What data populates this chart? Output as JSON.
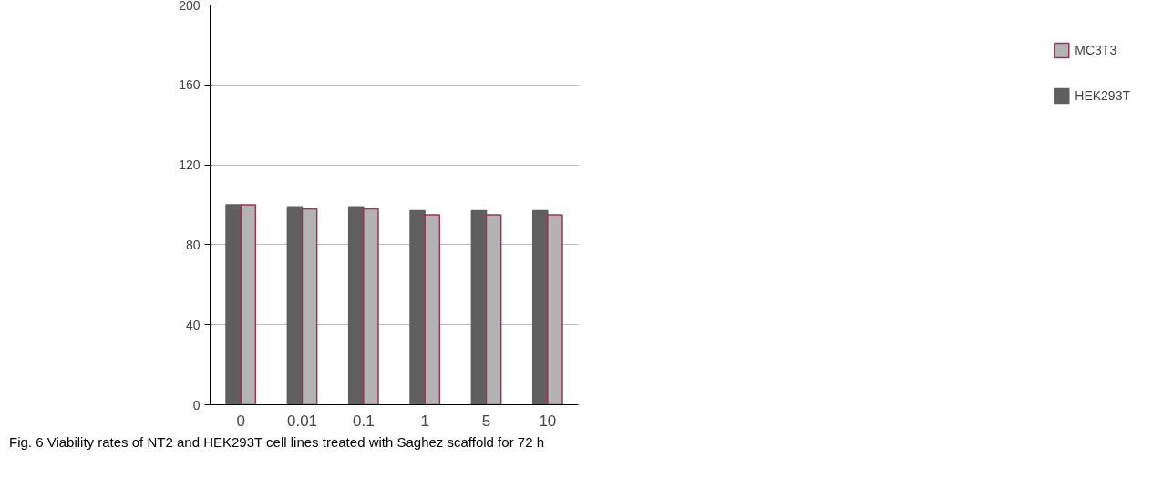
{
  "chart_data": {
    "type": "bar",
    "categories": [
      "0",
      "0.01",
      "0.1",
      "1",
      "5",
      "10"
    ],
    "series": [
      {
        "name": "HEK293T",
        "color": "#5f5f5f",
        "values": [
          100,
          99,
          99,
          97,
          97,
          97
        ]
      },
      {
        "name": "MC3T3",
        "color": "#b3b3b3",
        "values": [
          100,
          98,
          98,
          95,
          95,
          95
        ]
      }
    ],
    "ylim": [
      0,
      200
    ],
    "yticks": [
      0,
      40,
      80,
      120,
      160,
      200
    ],
    "grid": "y",
    "legend": "right",
    "annotations": [
      "Fig. 6 Viability rates of NT2 and HEK293T cell lines treated with Saghez scaffold for 72 h"
    ]
  }
}
